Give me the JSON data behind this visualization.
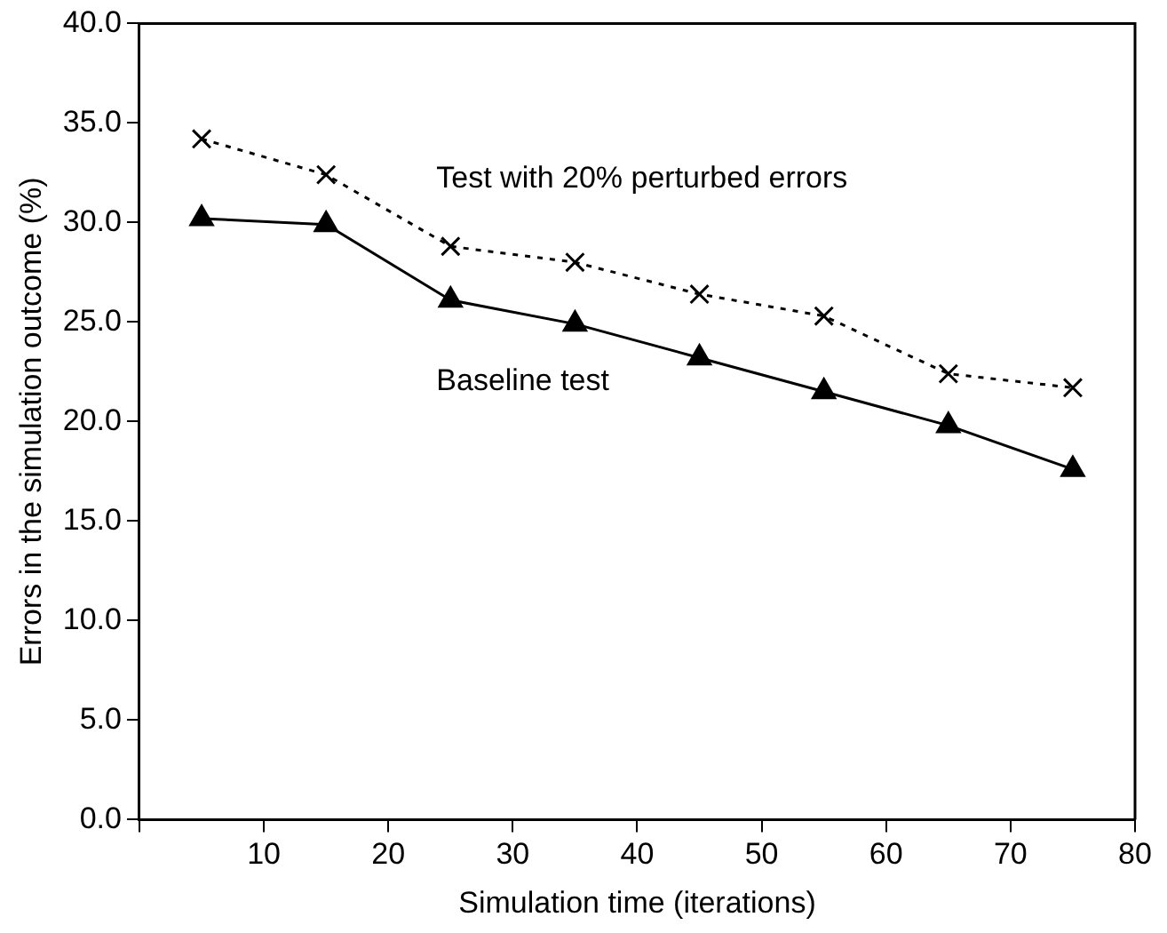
{
  "chart_data": {
    "type": "line",
    "xlabel": "Simulation time (iterations)",
    "ylabel": "Errors in the simulation outcome (%)",
    "x": [
      5,
      15,
      25,
      35,
      45,
      55,
      65,
      75
    ],
    "series": [
      {
        "name": "Test with 20% perturbed errors",
        "color": "#000000",
        "marker": "cross",
        "line_style": "dotted",
        "values": [
          34.2,
          32.4,
          28.8,
          28.0,
          26.4,
          25.3,
          22.4,
          21.7
        ]
      },
      {
        "name": "Baseline test",
        "color": "#000000",
        "marker": "triangle",
        "line_style": "solid",
        "values": [
          30.2,
          29.9,
          26.1,
          24.9,
          23.2,
          21.5,
          19.8,
          17.6
        ]
      }
    ],
    "xlim": [
      0,
      80
    ],
    "xticks": [
      {
        "value": 0,
        "label": null
      },
      10,
      20,
      30,
      40,
      50,
      60,
      70,
      80
    ],
    "ylim": [
      0,
      40
    ],
    "yticks": [
      {
        "value": 0,
        "label": "0.0"
      },
      {
        "value": 5,
        "label": "5.0"
      },
      {
        "value": 10,
        "label": "10.0"
      },
      {
        "value": 15,
        "label": "15.0"
      },
      {
        "value": 20,
        "label": "20.0"
      },
      {
        "value": 25,
        "label": "25.0"
      },
      {
        "value": 30,
        "label": "30.0"
      },
      {
        "value": 35,
        "label": "35.0"
      },
      {
        "value": 40,
        "label": "40.0"
      }
    ],
    "grid": false,
    "legend": false
  }
}
